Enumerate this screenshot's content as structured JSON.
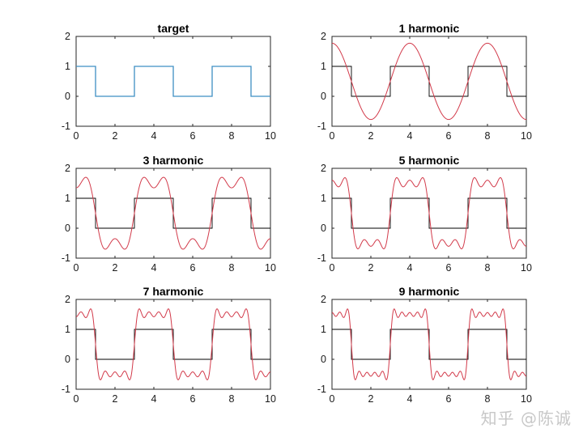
{
  "watermark": "知乎 @陈诚",
  "colors": {
    "target": "#3e8fc3",
    "approx": "#d23a4a",
    "square": "#000000",
    "axes": "#262626"
  },
  "chart_data": [
    {
      "type": "line",
      "title": "target",
      "xlim": [
        0,
        10
      ],
      "ylim": [
        -1,
        2
      ],
      "xticks": [
        0,
        2,
        4,
        6,
        8,
        10
      ],
      "yticks": [
        -1,
        0,
        1,
        2
      ],
      "square_wave": {
        "period": 4,
        "high": 1,
        "low": 0,
        "high_intervals": [
          [
            0,
            1
          ],
          [
            3,
            5
          ],
          [
            7,
            9
          ]
        ]
      },
      "harmonics": 0,
      "series": []
    },
    {
      "type": "line",
      "title": "1 harmonic",
      "xlim": [
        0,
        10
      ],
      "ylim": [
        -1,
        2
      ],
      "xticks": [
        0,
        2,
        4,
        6,
        8,
        10
      ],
      "yticks": [
        -1,
        0,
        1,
        2
      ],
      "square_wave": {
        "period": 4,
        "high": 1,
        "low": 0,
        "high_intervals": [
          [
            0,
            1
          ],
          [
            3,
            5
          ],
          [
            7,
            9
          ]
        ]
      },
      "harmonics": 1,
      "series": []
    },
    {
      "type": "line",
      "title": "3 harmonic",
      "xlim": [
        0,
        10
      ],
      "ylim": [
        -1,
        2
      ],
      "xticks": [
        0,
        2,
        4,
        6,
        8,
        10
      ],
      "yticks": [
        -1,
        0,
        1,
        2
      ],
      "square_wave": {
        "period": 4,
        "high": 1,
        "low": 0,
        "high_intervals": [
          [
            0,
            1
          ],
          [
            3,
            5
          ],
          [
            7,
            9
          ]
        ]
      },
      "harmonics": 3,
      "series": []
    },
    {
      "type": "line",
      "title": "5 harmonic",
      "xlim": [
        0,
        10
      ],
      "ylim": [
        -1,
        2
      ],
      "xticks": [
        0,
        2,
        4,
        6,
        8,
        10
      ],
      "yticks": [
        -1,
        0,
        1,
        2
      ],
      "square_wave": {
        "period": 4,
        "high": 1,
        "low": 0,
        "high_intervals": [
          [
            0,
            1
          ],
          [
            3,
            5
          ],
          [
            7,
            9
          ]
        ]
      },
      "harmonics": 5,
      "series": []
    },
    {
      "type": "line",
      "title": "7 harmonic",
      "xlim": [
        0,
        10
      ],
      "ylim": [
        -1,
        2
      ],
      "xticks": [
        0,
        2,
        4,
        6,
        8,
        10
      ],
      "yticks": [
        -1,
        0,
        1,
        2
      ],
      "square_wave": {
        "period": 4,
        "high": 1,
        "low": 0,
        "high_intervals": [
          [
            0,
            1
          ],
          [
            3,
            5
          ],
          [
            7,
            9
          ]
        ]
      },
      "harmonics": 7,
      "series": []
    },
    {
      "type": "line",
      "title": "9 harmonic",
      "xlim": [
        0,
        10
      ],
      "ylim": [
        -1,
        2
      ],
      "xticks": [
        0,
        2,
        4,
        6,
        8,
        10
      ],
      "yticks": [
        -1,
        0,
        1,
        2
      ],
      "square_wave": {
        "period": 4,
        "high": 1,
        "low": 0,
        "high_intervals": [
          [
            0,
            1
          ],
          [
            3,
            5
          ],
          [
            7,
            9
          ]
        ]
      },
      "harmonics": 9,
      "series": []
    }
  ]
}
